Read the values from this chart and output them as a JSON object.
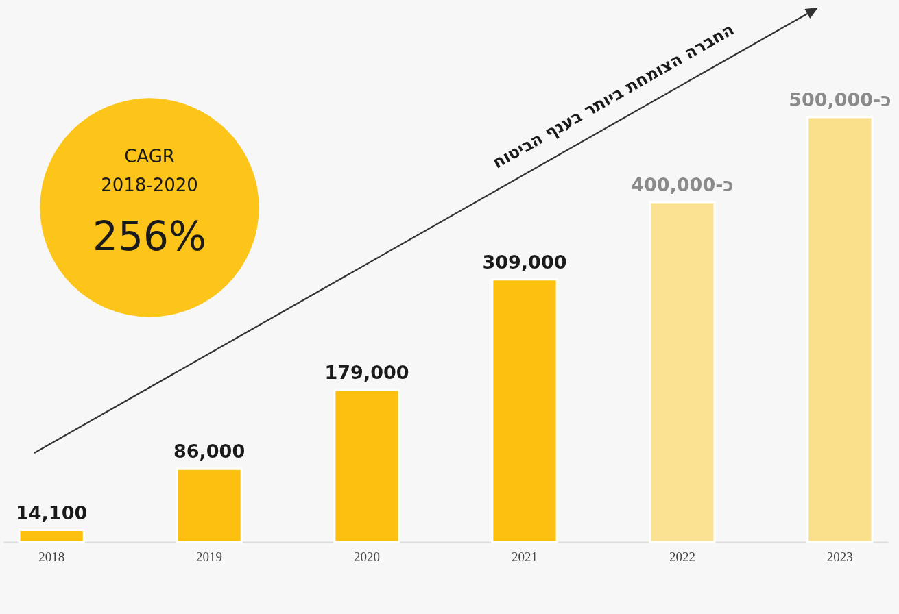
{
  "chart_data": {
    "type": "bar",
    "categories": [
      "2018",
      "2019",
      "2020",
      "2021",
      "2022",
      "2023"
    ],
    "values": [
      14100,
      86000,
      179000,
      309000,
      400000,
      500000
    ],
    "colors": [
      "#fdc010",
      "#fdc010",
      "#fdc010",
      "#fdc010",
      "#fbe293",
      "#fbe08c"
    ],
    "value_labels": [
      "14,100",
      "86,000",
      "179,000",
      "309,000",
      "כ-400,000",
      "כ-500,000"
    ],
    "annotations": [
      "CAGR",
      "2018-2020",
      "256%",
      "החברה הצומחת ביותר בענף הביטוח"
    ],
    "grid": false
  }
}
